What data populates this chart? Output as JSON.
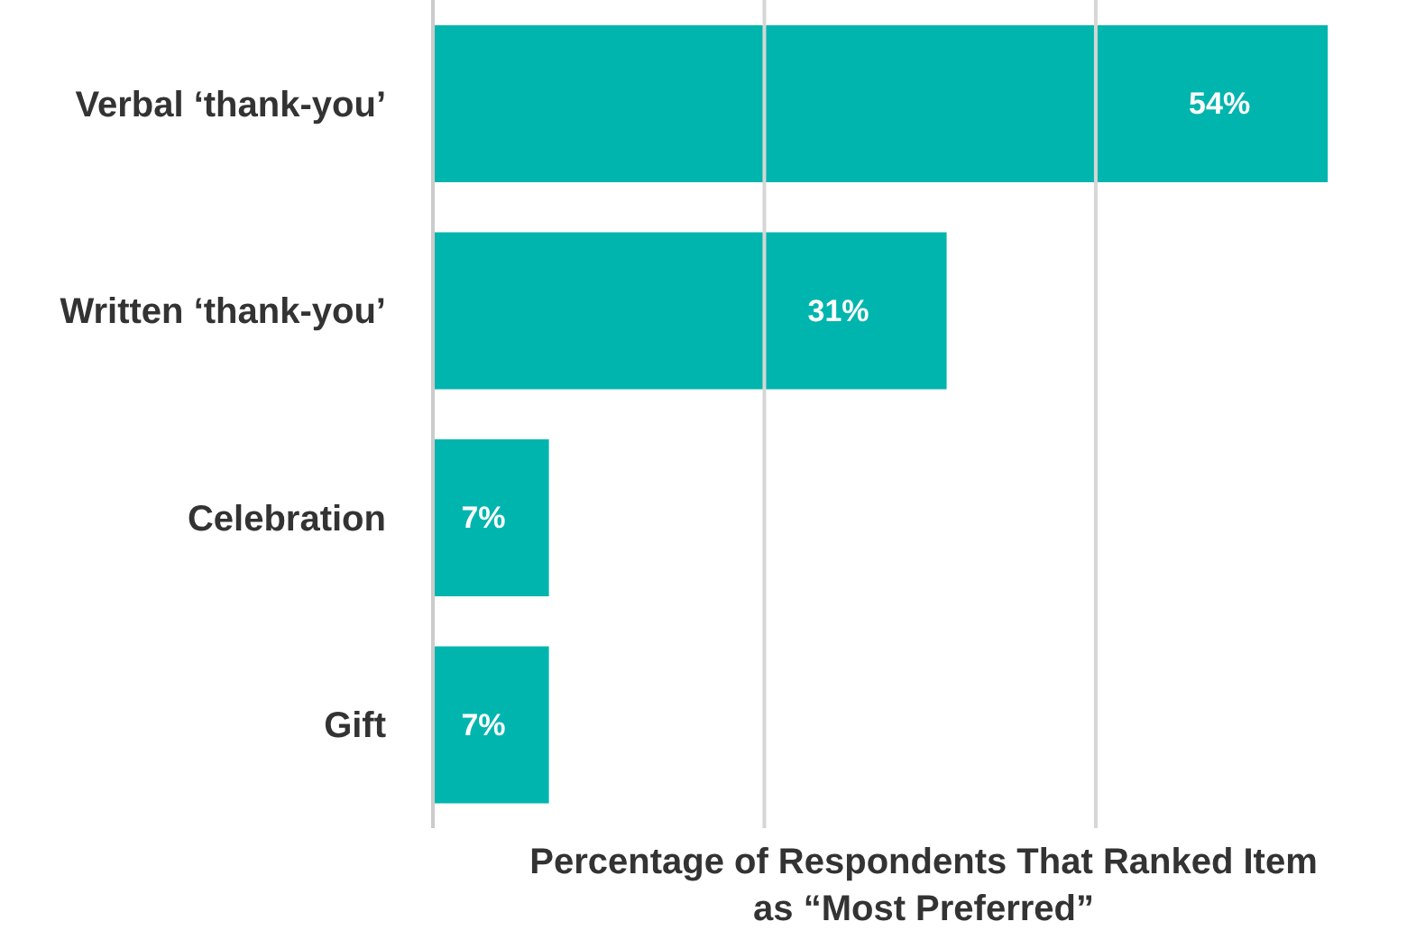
{
  "chart_data": {
    "type": "bar",
    "orientation": "horizontal",
    "xlabel": "Percentage of Respondents That Ranked Item as “Most Preferred”",
    "categories": [
      "Verbal ‘thank-you’",
      "Written ‘thank-you’",
      "Celebration",
      "Gift"
    ],
    "values": [
      54,
      31,
      7,
      7
    ],
    "value_labels": [
      "54%",
      "31%",
      "7%",
      "7%"
    ],
    "color": "#00b5ad",
    "ref_lines": [
      {
        "axis": "x",
        "value": 20,
        "color": "#d6d6d6"
      },
      {
        "axis": "x",
        "value": 40,
        "color": "#d6d6d6"
      }
    ],
    "tick_labels": "y",
    "legend": false
  }
}
